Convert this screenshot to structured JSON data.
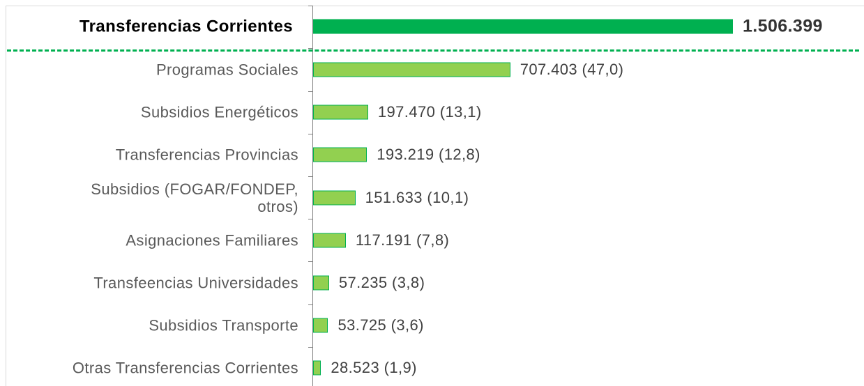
{
  "chart_data": {
    "type": "bar",
    "orientation": "horizontal",
    "categories": [
      "Transferencias Corrientes",
      "Programas Sociales",
      "Subsidios Energéticos",
      "Transferencias Provincias",
      "Subsidios (FOGAR/FONDEP, otros)",
      "Asignaciones Familiares",
      "Transfeencias Universidades",
      "Subsidios Transporte",
      "Otras Transferencias Corrientes"
    ],
    "values": [
      1506399,
      707403,
      197470,
      193219,
      151633,
      117191,
      57235,
      53725,
      28523
    ],
    "value_labels": [
      "1.506.399",
      "707.403 (47,0)",
      "197.470 (13,1)",
      "193.219 (12,8)",
      "151.633 (10,1)",
      "117.191 (7,8)",
      "57.235 (3,8)",
      "53.725 (3,6)",
      "28.523 (1,9)"
    ],
    "colors": [
      "#00b050",
      "#92d050",
      "#92d050",
      "#92d050",
      "#92d050",
      "#92d050",
      "#92d050",
      "#92d050",
      "#92d050"
    ],
    "edge_color": "#00b050"
  }
}
